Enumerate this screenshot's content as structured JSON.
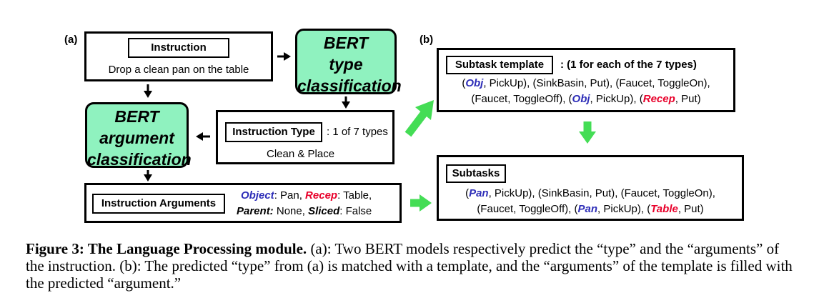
{
  "panel_a": {
    "label": "(a)",
    "instruction_box": {
      "title": "Instruction",
      "text": "Drop a clean pan on the table"
    },
    "bert_type": {
      "line1": "BERT",
      "line2": "type",
      "line3": "classification"
    },
    "bert_arg": {
      "line1": "BERT",
      "line2": "argument",
      "line3": "classification"
    },
    "type_box": {
      "title": "Instruction Type",
      "suffix": ": 1 of 7 types",
      "value": "Clean & Place"
    },
    "args_box": {
      "title": "Instruction Arguments",
      "object_key": "Object",
      "object_val": ": Pan, ",
      "recep_key": "Recep",
      "recep_val": ": Table,",
      "parent_key": "Parent:",
      "parent_val": " None, ",
      "sliced_key": "Sliced",
      "sliced_val": ": False"
    }
  },
  "panel_b": {
    "label": "(b)",
    "template_box": {
      "title": "Subtask template",
      "suffix": ": (1 for each of the 7 types)",
      "line1": {
        "p1": "(",
        "obj": "Obj",
        "p2": ", PickUp), (SinkBasin, Put), (Faucet, ToggleOn),"
      },
      "line2": {
        "p1": "(Faucet, ToggleOff), (",
        "obj": "Obj",
        "p2": ", PickUp), (",
        "rec": "Recep",
        "p3": ", Put)"
      }
    },
    "subtasks_box": {
      "title": "Subtasks",
      "line1": {
        "p1": "(",
        "obj": "Pan",
        "p2": ", PickUp), (SinkBasin, Put), (Faucet, ToggleOn),"
      },
      "line2": {
        "p1": "(Faucet, ToggleOff), (",
        "obj": "Pan",
        "p2": ", PickUp), (",
        "rec": "Table",
        "p3": ", Put)"
      }
    }
  },
  "caption": {
    "bold": "Figure 3: The Language Processing module.",
    "rest": " (a): Two BERT models respectively predict the “type” and the “arguments” of the instruction. (b): The predicted “type” from (a) is matched with a template, and the “arguments” of the template is filled with the predicted “argument.”"
  },
  "colors": {
    "green_box": "#8ff2bf",
    "green_arrow": "#44dd55",
    "object_blue": "#2e2eb8",
    "recep_red": "#e8002a"
  }
}
